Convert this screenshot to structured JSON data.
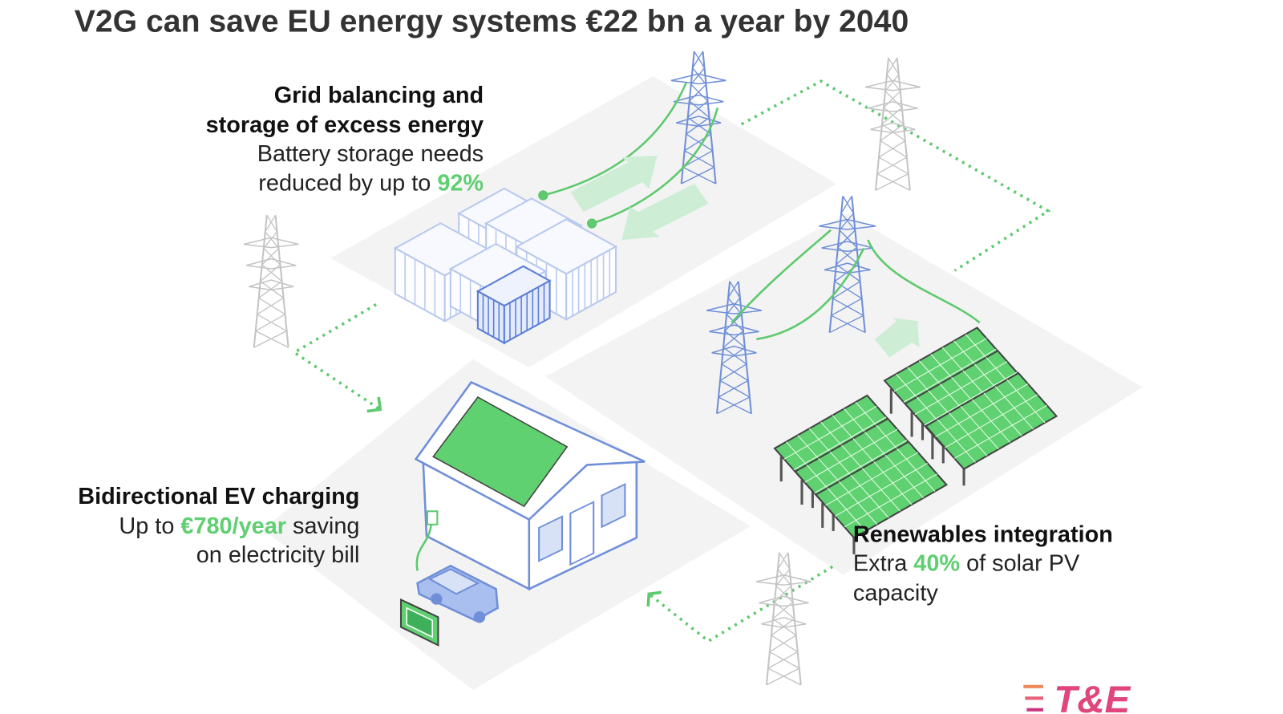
{
  "title": "V2G can save EU energy systems €22 bn a year by 2040",
  "panels": [
    {
      "heading": [
        "Grid balancing and",
        "storage of excess energy"
      ],
      "body": [
        {
          "text": "Battery storage needs"
        },
        {
          "before": "reduced by up to ",
          "highlight": "92%"
        }
      ]
    },
    {
      "heading": [
        "Bidirectional EV charging"
      ],
      "body": [
        {
          "before": "Up to ",
          "highlight": "€780/year",
          "after": " saving"
        },
        {
          "text": "on electricity bill"
        }
      ]
    },
    {
      "heading": [
        "Renewables integration"
      ],
      "body": [
        {
          "before": "Extra ",
          "highlight": "40%",
          "after": " of solar PV"
        },
        {
          "text": "capacity"
        }
      ]
    }
  ],
  "logo": "T&E"
}
